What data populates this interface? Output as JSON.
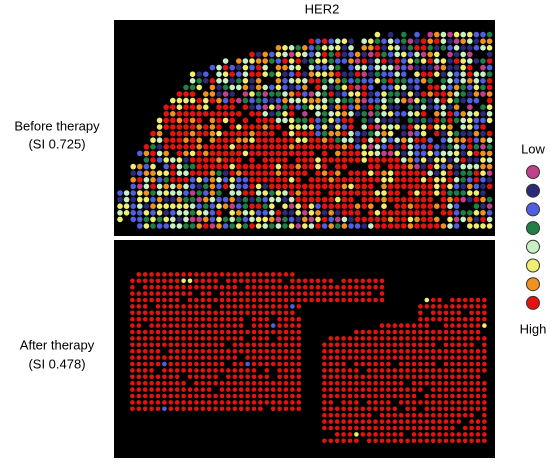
{
  "title": "HER2",
  "panels": [
    {
      "label": "Before therapy",
      "si": "(SI 0.725)"
    },
    {
      "label": "After therapy",
      "si": "(SI 0.478)"
    }
  ],
  "legend": {
    "low": "Low",
    "high": "High",
    "colors": [
      "#c0408c",
      "#2a2a78",
      "#4f5fe0",
      "#1f7f45",
      "#c9f0c4",
      "#f0ee70",
      "#f0921f",
      "#e3130f"
    ]
  }
}
